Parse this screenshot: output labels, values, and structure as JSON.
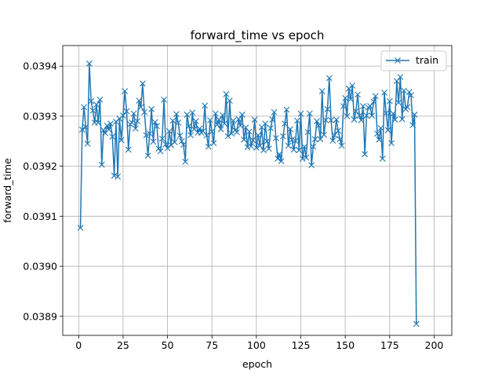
{
  "chart_data": {
    "type": "line",
    "title": "forward_time vs epoch",
    "xlabel": "epoch",
    "ylabel": "forward_time",
    "xlim": [
      -8.95,
      209.95
    ],
    "ylim": [
      0.038862,
      0.039441
    ],
    "xticks": [
      0,
      25,
      50,
      75,
      100,
      125,
      150,
      175,
      200
    ],
    "xtick_labels": [
      "0",
      "25",
      "50",
      "75",
      "100",
      "125",
      "150",
      "175",
      "200"
    ],
    "yticks": [
      0.0389,
      0.039,
      0.0391,
      0.0392,
      0.0393,
      0.0394
    ],
    "ytick_labels": [
      "0.0389",
      "0.0390",
      "0.0391",
      "0.0392",
      "0.0393",
      "0.0394"
    ],
    "grid": true,
    "legend": {
      "position": "top-right",
      "entries": [
        "train"
      ]
    },
    "series": [
      {
        "name": "train",
        "color": "#1f77b4",
        "marker": "x",
        "x_start": 1,
        "x_step": 1,
        "values": [
          0.039077,
          0.039273,
          0.039318,
          0.039278,
          0.039245,
          0.039405,
          0.03933,
          0.039311,
          0.039287,
          0.039323,
          0.039287,
          0.039333,
          0.039203,
          0.039272,
          0.039266,
          0.039281,
          0.039273,
          0.039285,
          0.039259,
          0.039181,
          0.039289,
          0.039179,
          0.039295,
          0.039252,
          0.039301,
          0.03935,
          0.03931,
          0.039233,
          0.039284,
          0.039287,
          0.039305,
          0.039275,
          0.03929,
          0.039331,
          0.039318,
          0.039365,
          0.039308,
          0.039262,
          0.039221,
          0.039265,
          0.039314,
          0.039249,
          0.039288,
          0.03928,
          0.039235,
          0.03923,
          0.039255,
          0.039333,
          0.039244,
          0.039236,
          0.03927,
          0.039242,
          0.039291,
          0.039248,
          0.039304,
          0.039287,
          0.039261,
          0.03925,
          0.039243,
          0.039209,
          0.039303,
          0.03928,
          0.039262,
          0.039307,
          0.039274,
          0.03929,
          0.039267,
          0.039275,
          0.039267,
          0.03927,
          0.039321,
          0.039262,
          0.039239,
          0.039292,
          0.039269,
          0.039246,
          0.039305,
          0.039283,
          0.039293,
          0.039274,
          0.039302,
          0.039285,
          0.039344,
          0.03926,
          0.039331,
          0.039265,
          0.039291,
          0.039272,
          0.039268,
          0.039294,
          0.039281,
          0.039303,
          0.039253,
          0.039277,
          0.039238,
          0.039269,
          0.03924,
          0.039252,
          0.039293,
          0.039237,
          0.039262,
          0.039241,
          0.039278,
          0.039232,
          0.039285,
          0.03925,
          0.039235,
          0.039276,
          0.039293,
          0.039308,
          0.039256,
          0.039215,
          0.039224,
          0.03921,
          0.03926,
          0.039285,
          0.039313,
          0.039241,
          0.039274,
          0.039253,
          0.039233,
          0.039251,
          0.039291,
          0.039232,
          0.039305,
          0.039215,
          0.039239,
          0.039217,
          0.039268,
          0.039305,
          0.039202,
          0.039239,
          0.039254,
          0.03929,
          0.039281,
          0.039254,
          0.03935,
          0.039263,
          0.039292,
          0.039314,
          0.039376,
          0.039292,
          0.039251,
          0.039262,
          0.039293,
          0.039271,
          0.039254,
          0.039241,
          0.03932,
          0.039336,
          0.0393,
          0.039355,
          0.039334,
          0.039361,
          0.039293,
          0.03931,
          0.039343,
          0.039301,
          0.039292,
          0.03932,
          0.039224,
          0.039301,
          0.039317,
          0.03932,
          0.039301,
          0.039329,
          0.03934,
          0.039265,
          0.039253,
          0.039276,
          0.039215,
          0.039347,
          0.039306,
          0.039272,
          0.03933,
          0.039246,
          0.039305,
          0.039293,
          0.03937,
          0.039327,
          0.039378,
          0.039294,
          0.039351,
          0.039314,
          0.039318,
          0.039348,
          0.039342,
          0.039282,
          0.039303,
          0.038885
        ]
      }
    ]
  }
}
